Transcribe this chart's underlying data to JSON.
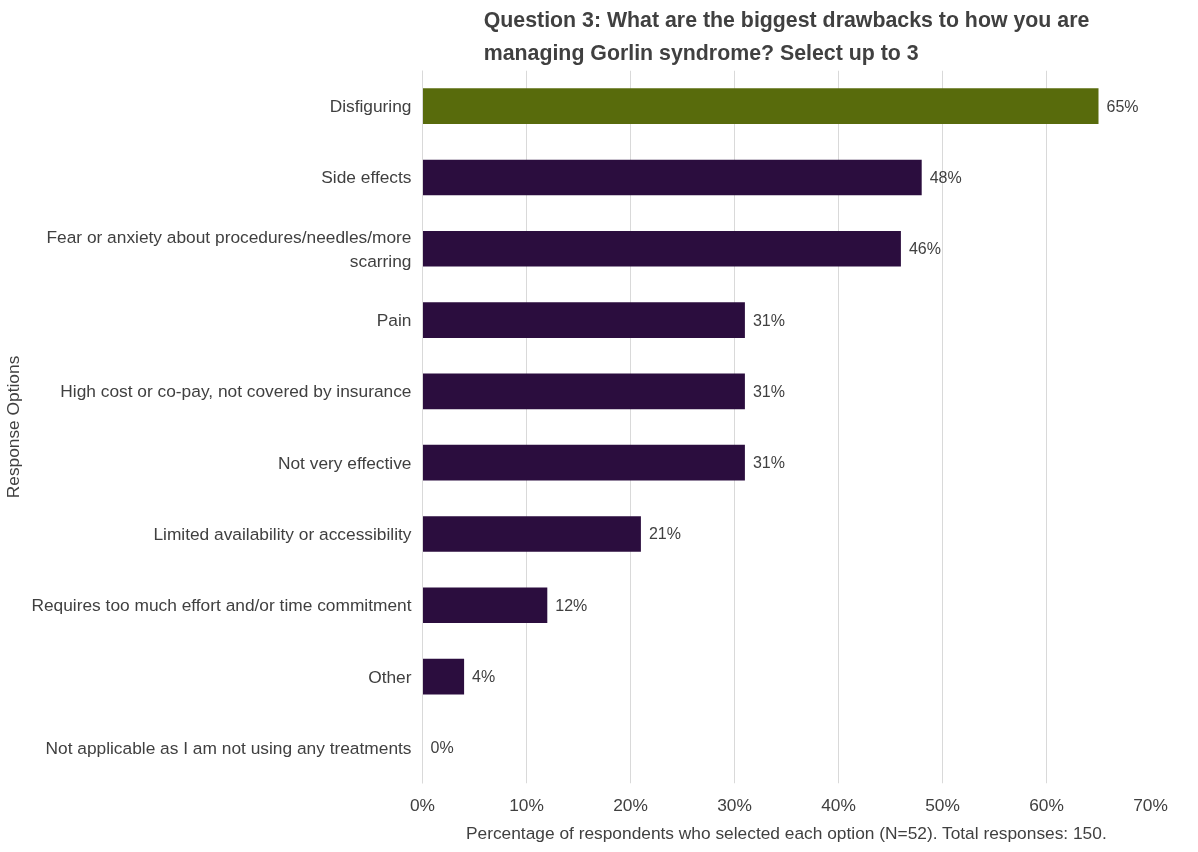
{
  "chart_data": {
    "type": "bar",
    "orientation": "horizontal",
    "title": "Question 3: What are the biggest drawbacks to how you are managing Gorlin syndrome? Select up to 3",
    "xlabel": "Percentage of respondents who selected each option (N=52). Total responses: 150.",
    "ylabel": "Response Options",
    "categories": [
      "Disfiguring",
      "Side effects",
      "Fear or anxiety about procedures/needles/more scarring",
      "Pain",
      "High cost or co-pay, not covered by insurance",
      "Not very effective",
      "Limited availability or accessibility",
      "Requires too much effort and/or time commitment",
      "Other",
      "Not applicable as I am not using any treatments"
    ],
    "values": [
      65,
      48,
      46,
      31,
      31,
      31,
      21,
      12,
      4,
      0
    ],
    "colors": [
      "#586b0c",
      "#2b0d3e",
      "#2b0d3e",
      "#2b0d3e",
      "#2b0d3e",
      "#2b0d3e",
      "#2b0d3e",
      "#2b0d3e",
      "#2b0d3e",
      "#2b0d3e"
    ],
    "value_labels": [
      "65%",
      "48%",
      "46%",
      "31%",
      "31%",
      "31%",
      "21%",
      "12%",
      "4%",
      "0%"
    ],
    "xlim": [
      0,
      70
    ],
    "xticks": [
      {
        "value": 0,
        "label": "0%"
      },
      {
        "value": 10,
        "label": "10%"
      },
      {
        "value": 20,
        "label": "20%"
      },
      {
        "value": 30,
        "label": "30%"
      },
      {
        "value": 40,
        "label": "40%"
      },
      {
        "value": 50,
        "label": "50%"
      },
      {
        "value": 60,
        "label": "60%"
      },
      {
        "value": 70,
        "label": "70%"
      }
    ],
    "grid": "x"
  }
}
